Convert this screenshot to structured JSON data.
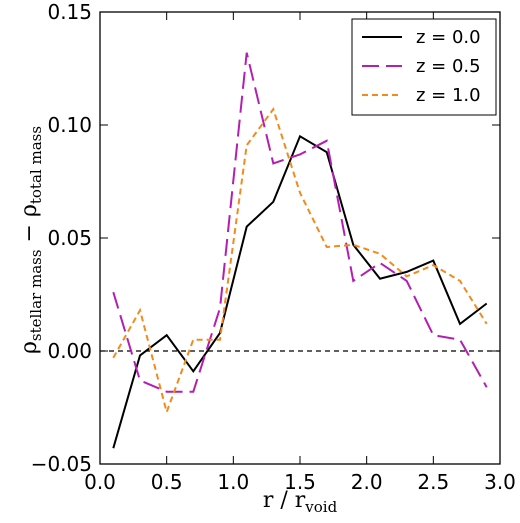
{
  "chart_data": {
    "type": "line",
    "xlabel": {
      "main": "r / r",
      "sub": "void"
    },
    "ylabel": {
      "main": "ρ",
      "sub1": "stellar mass",
      "mid": " − ρ",
      "sub2": "total mass"
    },
    "xlim": [
      0.0,
      3.0
    ],
    "ylim": [
      -0.05,
      0.15
    ],
    "xticks": [
      "0.0",
      "0.5",
      "1.0",
      "1.5",
      "2.0",
      "2.5",
      "3.0"
    ],
    "yticks": [
      "−0.05",
      "0.00",
      "0.05",
      "0.10",
      "0.15"
    ],
    "reference_line": {
      "y": 0.0,
      "style": "dashed",
      "color": "#000000"
    },
    "legend_position": "upper right",
    "series": [
      {
        "name": "z = 0.0",
        "color": "#000000",
        "dash": "solid",
        "x": [
          0.1,
          0.3,
          0.5,
          0.7,
          0.9,
          1.1,
          1.3,
          1.5,
          1.7,
          1.9,
          2.1,
          2.3,
          2.5,
          2.7,
          2.9
        ],
        "y": [
          -0.043,
          -0.002,
          0.007,
          -0.009,
          0.008,
          0.055,
          0.066,
          0.095,
          0.088,
          0.047,
          0.032,
          0.035,
          0.04,
          0.012,
          0.021
        ]
      },
      {
        "name": "z = 0.5",
        "color": "#b21fb2",
        "dash": "long",
        "x": [
          0.1,
          0.3,
          0.5,
          0.7,
          0.9,
          1.1,
          1.3,
          1.5,
          1.7,
          1.9,
          2.1,
          2.3,
          2.5,
          2.7,
          2.9
        ],
        "y": [
          0.026,
          -0.013,
          -0.018,
          -0.018,
          0.019,
          0.132,
          0.083,
          0.087,
          0.093,
          0.031,
          0.039,
          0.031,
          0.007,
          0.005,
          -0.016
        ]
      },
      {
        "name": "z = 1.0",
        "color": "#f28a1c",
        "dash": "short",
        "x": [
          0.1,
          0.3,
          0.5,
          0.7,
          0.9,
          1.1,
          1.3,
          1.5,
          1.7,
          1.9,
          2.1,
          2.3,
          2.5,
          2.7,
          2.9
        ],
        "y": [
          -0.003,
          0.018,
          -0.027,
          0.005,
          0.005,
          0.091,
          0.107,
          0.07,
          0.046,
          0.047,
          0.043,
          0.033,
          0.038,
          0.031,
          0.012
        ]
      }
    ]
  }
}
